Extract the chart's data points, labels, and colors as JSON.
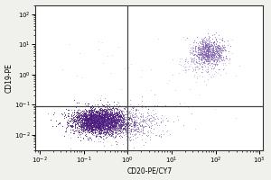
{
  "title": "",
  "xlabel": "CD20-PE/CY7",
  "ylabel": "CD19-PE",
  "xlim_log": [
    0.008,
    1200
  ],
  "ylim_log": [
    0.003,
    200
  ],
  "bg_color": "#f0f0ec",
  "gate_x": 1.0,
  "gate_y": 0.09,
  "dot_color_pop1": "#4a1a7a",
  "dot_color_pop2": "#7a5aaa",
  "dot_color_pop2b": "#b090d0",
  "line_color": "#444444",
  "pop1_n": 3000,
  "pop1_x_mean_log": -0.65,
  "pop1_x_std_log": 0.3,
  "pop1_y_mean_log": -1.55,
  "pop1_y_std_log": 0.2,
  "pop1b_n": 800,
  "pop1b_x_mean_log": -0.1,
  "pop1b_x_std_log": 0.45,
  "pop1b_y_mean_log": -1.6,
  "pop1b_y_std_log": 0.28,
  "pop2_n": 700,
  "pop2_x_mean_log": 1.85,
  "pop2_x_std_log": 0.18,
  "pop2_y_mean_log": 0.75,
  "pop2_y_std_log": 0.22,
  "pop2b_n": 200,
  "pop2b_x_mean_log": 1.7,
  "pop2b_x_std_log": 0.25,
  "pop2b_y_mean_log": 0.45,
  "pop2b_y_std_log": 0.3,
  "scatter_n": 60,
  "font_size_label": 5.5,
  "font_size_tick": 5.0,
  "seed": 17
}
